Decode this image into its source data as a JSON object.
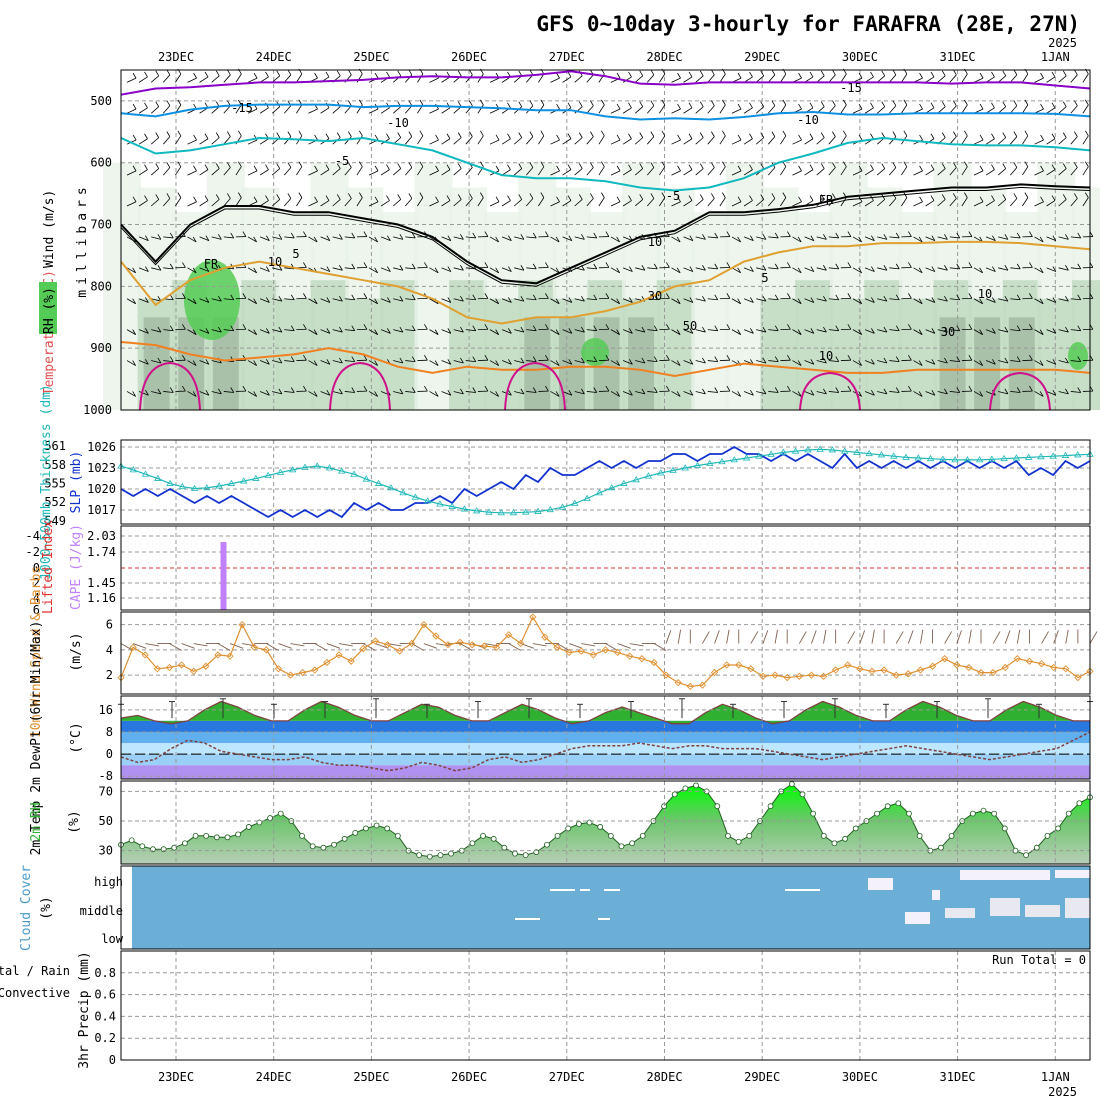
{
  "header": {
    "title": "GFS 0~10day 3-hourly for FARAFRA (28E, 27N)",
    "year_top": "2025"
  },
  "dates": [
    "23DEC",
    "24DEC",
    "25DEC",
    "26DEC",
    "27DEC",
    "28DEC",
    "29DEC",
    "30DEC",
    "31DEC",
    "1JAN"
  ],
  "year_bottom": "2025",
  "colors": {
    "rh_light": "#e8f2e8",
    "rh_mid": "#b7d6b7",
    "rh_dark": "#8fa88f",
    "rh_green": "#55cc55",
    "wind_barb": "#000000",
    "minus15": "#8a00c8",
    "minus10": "#0e90e0",
    "minus5": "#10b8c0",
    "fr": "#000000",
    "plus5": "#e0a030",
    "plus10": "#f08020",
    "plus15": "#d0108a",
    "slp": "#1030d0",
    "thick": "#20b8b8",
    "cape": "#c080ff",
    "li": "#e03030",
    "wind10": "#e09030",
    "cloud": "#6baed6"
  },
  "chart_data": [
    {
      "type": "contour",
      "panel": "upper-air",
      "ylabel_parts": [
        "Wind (m/s)",
        "Temperature (°C)",
        "RH (%)"
      ],
      "ylabel2": "millibars",
      "yticks": [
        500,
        600,
        700,
        800,
        900,
        1000
      ],
      "ylim": [
        450,
        1000
      ],
      "temperature_labels": [
        "-15",
        "-10",
        "-5",
        "FR",
        "5",
        "10"
      ],
      "rh_labels": [
        "10",
        "30",
        "50"
      ],
      "isotherms": [
        {
          "name": "-15",
          "p": [
            490,
            480,
            478,
            474,
            470,
            470,
            468,
            466,
            462,
            460,
            462,
            462,
            458,
            452,
            460,
            472,
            474,
            470,
            470,
            470,
            470,
            470,
            470,
            470,
            472,
            470,
            470,
            475,
            480
          ]
        },
        {
          "name": "-10",
          "p": [
            520,
            525,
            514,
            508,
            506,
            506,
            506,
            510,
            508,
            508,
            510,
            512,
            515,
            515,
            525,
            530,
            528,
            530,
            526,
            520,
            518,
            522,
            522,
            520,
            520,
            520,
            520,
            521,
            525
          ]
        },
        {
          "name": "-5",
          "p": [
            560,
            585,
            580,
            570,
            560,
            562,
            565,
            560,
            570,
            580,
            600,
            620,
            625,
            625,
            630,
            640,
            645,
            640,
            625,
            600,
            585,
            568,
            560,
            565,
            570,
            572,
            572,
            575,
            580
          ]
        },
        {
          "name": "FR",
          "p": [
            700,
            760,
            700,
            670,
            670,
            680,
            680,
            690,
            700,
            720,
            760,
            790,
            795,
            770,
            745,
            720,
            710,
            680,
            680,
            675,
            668,
            655,
            650,
            645,
            640,
            640,
            635,
            638,
            640
          ]
        },
        {
          "name": "5",
          "p": [
            760,
            830,
            790,
            770,
            760,
            770,
            780,
            790,
            800,
            820,
            850,
            860,
            850,
            850,
            840,
            825,
            800,
            790,
            760,
            745,
            735,
            735,
            730,
            730,
            728,
            728,
            730,
            735,
            740
          ]
        },
        {
          "name": "10",
          "p": [
            890,
            895,
            910,
            920,
            915,
            910,
            900,
            910,
            930,
            940,
            930,
            935,
            935,
            930,
            930,
            935,
            945,
            935,
            925,
            930,
            935,
            940,
            940,
            935,
            935,
            935,
            935,
            935,
            940
          ]
        }
      ],
      "rh_percent": [
        20,
        60,
        80,
        70,
        50,
        40,
        40,
        50,
        40,
        30,
        40,
        50,
        60,
        70,
        80,
        60,
        40,
        30,
        30,
        40,
        50,
        40,
        40,
        50,
        60,
        70,
        60,
        50,
        40
      ]
    },
    {
      "type": "line",
      "panel": "slp-thickness",
      "ylabel_left": "1000~500mb Thickness (dm)",
      "ylabel_right": "SLP (mb)",
      "yticks_thickness": [
        549,
        552,
        555,
        558,
        561
      ],
      "yticks_slp": [
        1017,
        1020,
        1023,
        1026
      ],
      "ylim_slp": [
        1015,
        1027
      ],
      "ylim_thickness": [
        548.5,
        562
      ],
      "series": [
        {
          "values": [
            1020,
            1019,
            1020,
            1019,
            1020,
            1019,
            1018,
            1019,
            1018,
            1019,
            1018,
            1017,
            1016,
            1017,
            1016,
            1017,
            1016,
            1017,
            1016,
            1018,
            1017,
            1018,
            1017,
            1017,
            1018,
            1018,
            1019,
            1018,
            1020,
            1019,
            1020,
            1021,
            1020,
            1022,
            1021,
            1023,
            1022,
            1022,
            1023,
            1024,
            1023,
            1024,
            1023,
            1024,
            1024,
            1025,
            1025,
            1024,
            1025,
            1025,
            1026,
            1025,
            1025,
            1024,
            1025,
            1024,
            1025,
            1024,
            1023,
            1025,
            1023,
            1024,
            1023,
            1024,
            1023,
            1024,
            1023,
            1024,
            1023,
            1024,
            1023,
            1024,
            1023,
            1024,
            1022,
            1023,
            1022,
            1024,
            1023,
            1024
          ]
        },
        {
          "values": [
            557.8,
            557.2,
            556.5,
            555.8,
            555.0,
            554.5,
            554.2,
            554.3,
            554.6,
            555.0,
            555.4,
            555.8,
            556.3,
            556.8,
            557.2,
            557.6,
            557.8,
            557.5,
            557.0,
            556.5,
            555.7,
            555.0,
            554.3,
            553.5,
            552.8,
            552.2,
            551.7,
            551.3,
            550.9,
            550.6,
            550.4,
            550.3,
            550.3,
            550.4,
            550.5,
            550.8,
            551.2,
            551.8,
            552.6,
            553.5,
            554.3,
            555.0,
            555.6,
            556.2,
            556.7,
            557.1,
            557.5,
            557.9,
            558.2,
            558.5,
            558.8,
            559.1,
            559.4,
            559.7,
            560.0,
            560.2,
            560.4,
            560.5,
            560.4,
            560.2,
            560.0,
            559.8,
            559.6,
            559.4,
            559.2,
            559.1,
            559.0,
            558.9,
            558.8,
            558.8,
            558.8,
            558.9,
            559.0,
            559.1,
            559.2,
            559.3,
            559.4,
            559.5,
            559.6,
            559.7
          ]
        }
      ]
    },
    {
      "type": "bar",
      "panel": "cape-li",
      "ylabel_left": "Lifted Index",
      "ylabel_right": "CAPE (J/kg)",
      "yticks_li": [
        "-4",
        "-2",
        "0",
        "2",
        "4",
        "6"
      ],
      "yticks_cape": [
        "2.03",
        "1.74",
        "1.45",
        "1.16"
      ],
      "ylim_cape": [
        0.89,
        2.3
      ],
      "li_zero": 0,
      "bars": [
        {
          "t": 0.95,
          "cape": 2.03
        }
      ]
    },
    {
      "type": "line",
      "panel": "wind10m",
      "ylabel": "10m Wind Speed & Barbs",
      "unit": "(m/s)",
      "yticks": [
        2,
        4,
        6
      ],
      "ylim": [
        0.5,
        7
      ],
      "series": [
        {
          "values": [
            1.8,
            4.2,
            3.6,
            2.5,
            2.6,
            2.8,
            2.3,
            2.7,
            3.6,
            3.5,
            6.0,
            4.2,
            4.0,
            2.5,
            2.0,
            2.2,
            2.4,
            3.0,
            3.6,
            3.1,
            4.1,
            4.7,
            4.4,
            3.9,
            4.5,
            6.0,
            5.1,
            4.4,
            4.6,
            4.4,
            4.3,
            4.2,
            5.2,
            4.5,
            6.6,
            5.0,
            4.2,
            3.8,
            3.9,
            3.6,
            4.0,
            3.8,
            3.5,
            3.3,
            3.0,
            2.0,
            1.4,
            1.1,
            1.2,
            2.2,
            2.8,
            2.8,
            2.5,
            1.9,
            2.0,
            1.8,
            1.9,
            2.0,
            1.9,
            2.4,
            2.8,
            2.5,
            2.3,
            2.4,
            2.0,
            2.1,
            2.4,
            2.7,
            3.3,
            2.8,
            2.6,
            2.2,
            2.2,
            2.6,
            3.3,
            3.1,
            2.9,
            2.6,
            2.5,
            1.8,
            2.3
          ]
        }
      ]
    },
    {
      "type": "area",
      "panel": "temp-dewpt",
      "ylabel": "2m Temp 2m DewPt (6hr Min/Max)",
      "unit": "(°C)",
      "yticks": [
        "16",
        "8",
        "0",
        "-8"
      ],
      "ylim": [
        -9,
        21
      ],
      "temp": [
        13,
        14,
        12,
        11,
        12,
        16,
        19,
        17,
        14,
        12,
        12,
        16,
        19,
        17,
        14,
        12,
        12,
        15,
        18,
        17,
        14,
        12,
        12,
        15,
        18,
        16,
        13,
        11,
        12,
        15,
        17,
        15,
        13,
        11,
        11,
        15,
        18,
        16,
        13,
        11,
        12,
        16,
        19,
        17,
        14,
        12,
        12,
        16,
        19,
        17,
        14,
        12,
        12,
        16,
        19,
        17,
        14,
        12,
        12
      ],
      "dewpt": [
        -1,
        -3,
        -2,
        2,
        5,
        4,
        1,
        0,
        -1,
        -2,
        -2,
        -1,
        -3,
        -4,
        -4,
        -5,
        -6,
        -5,
        -3,
        -4,
        -6,
        -5,
        -2,
        -1,
        -3,
        -2,
        0,
        2,
        3,
        3,
        3,
        4,
        3,
        2,
        3,
        3,
        2,
        2,
        2,
        1,
        0,
        -1,
        -2,
        -1,
        0,
        1,
        2,
        3,
        2,
        1,
        0,
        -1,
        -2,
        -1,
        0,
        1,
        2,
        5,
        8
      ]
    },
    {
      "type": "area",
      "panel": "rh2m",
      "ylabel": "2m RH",
      "unit": "(%)",
      "yticks": [
        30,
        50,
        70
      ],
      "ylim": [
        21,
        77
      ],
      "values": [
        34,
        37,
        33,
        31,
        31,
        32,
        35,
        40,
        40,
        39,
        39,
        41,
        46,
        49,
        52,
        55,
        50,
        40,
        33,
        32,
        34,
        38,
        42,
        45,
        47,
        45,
        40,
        30,
        27,
        26,
        27,
        28,
        30,
        35,
        40,
        38,
        32,
        28,
        27,
        29,
        34,
        40,
        45,
        48,
        49,
        46,
        40,
        33,
        35,
        40,
        50,
        60,
        68,
        72,
        74,
        70,
        60,
        40,
        36,
        40,
        50,
        60,
        70,
        75,
        68,
        55,
        40,
        35,
        38,
        45,
        50,
        55,
        60,
        62,
        55,
        40,
        30,
        32,
        40,
        50,
        55,
        57,
        55,
        45,
        30,
        27,
        32,
        40,
        45,
        55,
        62,
        66
      ]
    },
    {
      "type": "heatmap",
      "panel": "cloud-cover",
      "ylabel": "Cloud Cover",
      "unit": "(%)",
      "row_labels": [
        "high",
        "middle",
        "low"
      ]
    },
    {
      "type": "bar",
      "panel": "precip",
      "ylabel": "3hr Precip (mm)",
      "ylabel_extra": [
        "Total / Rain",
        "Convective"
      ],
      "yticks": [
        "0.8",
        "0.6",
        "0.4",
        "0.2",
        "0"
      ],
      "ylim": [
        0,
        1
      ],
      "run_total": "Run Total = 0",
      "values": []
    }
  ]
}
